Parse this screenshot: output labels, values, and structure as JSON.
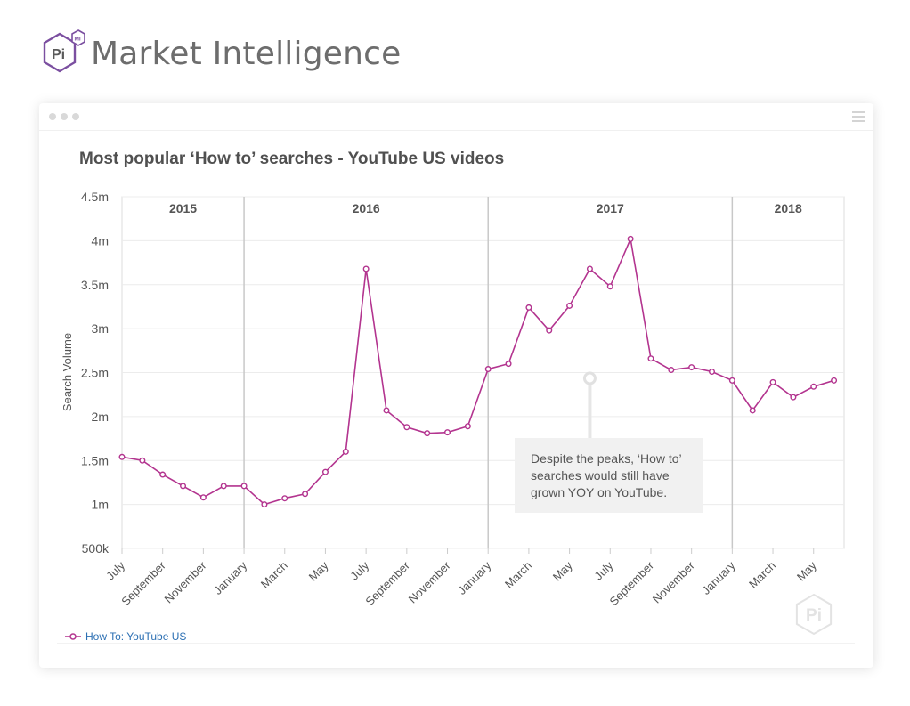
{
  "brand": {
    "logo_letters": "Pi",
    "logo_badge": "Mi",
    "name": "Market Intelligence",
    "accent": "#7b4fa0"
  },
  "window": {
    "menu_icon": "hamburger-menu-icon"
  },
  "annotation": {
    "text": "Despite the peaks, ‘How to’ searches would still have grown YOY on YouTube."
  },
  "watermark": {
    "letters": "Pi"
  },
  "chart_data": {
    "type": "line",
    "title": "Most popular ‘How to’ searches - YouTube US videos",
    "ylabel": "Search Volume",
    "xlabel": "",
    "ylim": [
      500000,
      4500000
    ],
    "y_ticks": [
      "500k",
      "1m",
      "1.5m",
      "2m",
      "2.5m",
      "3m",
      "3.5m",
      "4m",
      "4.5m"
    ],
    "year_bands": [
      "2015",
      "2016",
      "2017",
      "2018"
    ],
    "x_tick_labels": [
      "July",
      "September",
      "November",
      "January",
      "March",
      "May",
      "July",
      "September",
      "November",
      "January",
      "March",
      "May",
      "July",
      "September",
      "November",
      "January",
      "March",
      "May"
    ],
    "x": [
      "2015-07",
      "2015-08",
      "2015-09",
      "2015-10",
      "2015-11",
      "2015-12",
      "2016-01",
      "2016-02",
      "2016-03",
      "2016-04",
      "2016-05",
      "2016-06",
      "2016-07",
      "2016-08",
      "2016-09",
      "2016-10",
      "2016-11",
      "2016-12",
      "2017-01",
      "2017-02",
      "2017-03",
      "2017-04",
      "2017-05",
      "2017-06",
      "2017-07",
      "2017-08",
      "2017-09",
      "2017-10",
      "2017-11",
      "2017-12",
      "2018-01",
      "2018-02",
      "2018-03",
      "2018-04",
      "2018-05",
      "2018-06"
    ],
    "series": [
      {
        "name": "How To: YouTube US",
        "color": "#b3348f",
        "values": [
          1540000,
          1500000,
          1340000,
          1210000,
          1080000,
          1210000,
          1210000,
          1000000,
          1070000,
          1120000,
          1370000,
          1600000,
          3680000,
          2070000,
          1880000,
          1810000,
          1820000,
          1890000,
          2540000,
          2600000,
          3240000,
          2980000,
          3260000,
          3680000,
          3480000,
          4020000,
          2660000,
          2530000,
          2560000,
          2510000,
          2410000,
          2070000,
          2390000,
          2220000,
          2340000,
          2410000
        ]
      }
    ],
    "grid": true,
    "legend": "bottom-left"
  }
}
